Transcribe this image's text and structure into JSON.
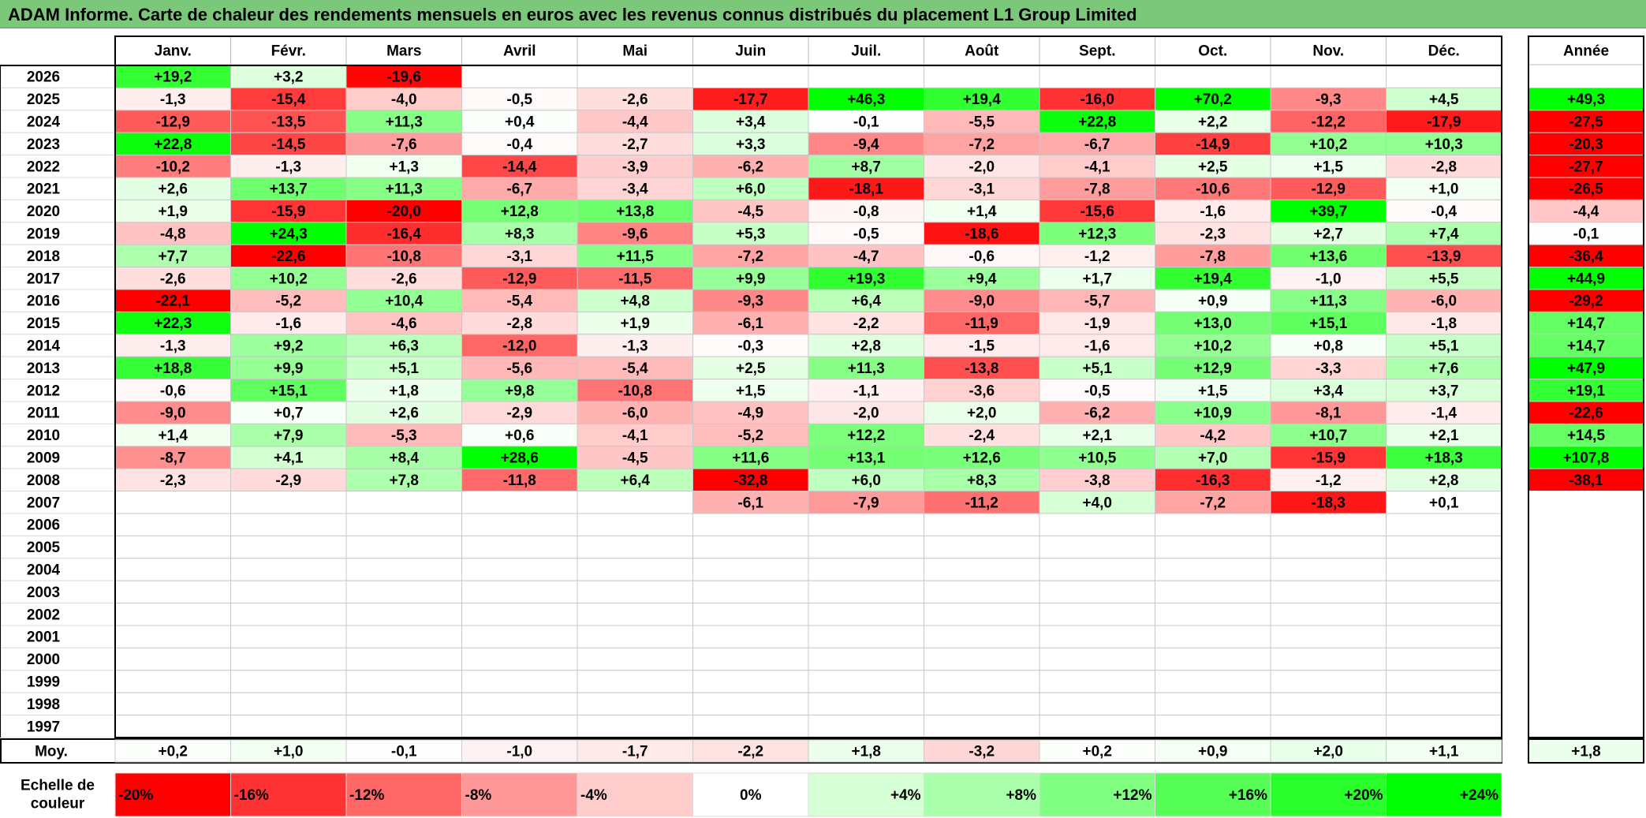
{
  "title": "ADAM Informe. Carte de chaleur des rendements mensuels en euros avec les revenus connus distribués du placement L1 Group Limited",
  "chart_data": {
    "type": "heatmap",
    "title": "ADAM Informe. Carte de chaleur des rendements mensuels en euros avec les revenus connus distribués du placement L1 Group Limited",
    "months": [
      "Janv.",
      "Févr.",
      "Mars",
      "Avril",
      "Mai",
      "Juin",
      "Juil.",
      "Août",
      "Sept.",
      "Oct.",
      "Nov.",
      "Déc."
    ],
    "year_header": "Année",
    "rows": [
      {
        "year": "2026",
        "values": [
          "+19,2",
          "+3,2",
          "-19,6",
          null,
          null,
          null,
          null,
          null,
          null,
          null,
          null,
          null
        ],
        "annual": null
      },
      {
        "year": "2025",
        "values": [
          "-1,3",
          "-15,4",
          "-4,0",
          "-0,5",
          "-2,6",
          "-17,7",
          "+46,3",
          "+19,4",
          "-16,0",
          "+70,2",
          "-9,3",
          "+4,5"
        ],
        "annual": "+49,3"
      },
      {
        "year": "2024",
        "values": [
          "-12,9",
          "-13,5",
          "+11,3",
          "+0,4",
          "-4,4",
          "+3,4",
          "-0,1",
          "-5,5",
          "+22,8",
          "+2,2",
          "-12,2",
          "-17,9"
        ],
        "annual": "-27,5"
      },
      {
        "year": "2023",
        "values": [
          "+22,8",
          "-14,5",
          "-7,6",
          "-0,4",
          "-2,7",
          "+3,3",
          "-9,4",
          "-7,2",
          "-6,7",
          "-14,9",
          "+10,2",
          "+10,3"
        ],
        "annual": "-20,3"
      },
      {
        "year": "2022",
        "values": [
          "-10,2",
          "-1,3",
          "+1,3",
          "-14,4",
          "-3,9",
          "-6,2",
          "+8,7",
          "-2,0",
          "-4,1",
          "+2,5",
          "+1,5",
          "-2,8"
        ],
        "annual": "-27,7"
      },
      {
        "year": "2021",
        "values": [
          "+2,6",
          "+13,7",
          "+11,3",
          "-6,7",
          "-3,4",
          "+6,0",
          "-18,1",
          "-3,1",
          "-7,8",
          "-10,6",
          "-12,9",
          "+1,0"
        ],
        "annual": "-26,5"
      },
      {
        "year": "2020",
        "values": [
          "+1,9",
          "-15,9",
          "-20,0",
          "+12,8",
          "+13,8",
          "-4,5",
          "-0,8",
          "+1,4",
          "-15,6",
          "-1,6",
          "+39,7",
          "-0,4"
        ],
        "annual": "-4,4"
      },
      {
        "year": "2019",
        "values": [
          "-4,8",
          "+24,3",
          "-16,4",
          "+8,3",
          "-9,6",
          "+5,3",
          "-0,5",
          "-18,6",
          "+12,3",
          "-2,3",
          "+2,7",
          "+7,4"
        ],
        "annual": "-0,1"
      },
      {
        "year": "2018",
        "values": [
          "+7,7",
          "-22,6",
          "-10,8",
          "-3,1",
          "+11,5",
          "-7,2",
          "-4,7",
          "-0,6",
          "-1,2",
          "-7,8",
          "+13,6",
          "-13,9"
        ],
        "annual": "-36,4"
      },
      {
        "year": "2017",
        "values": [
          "-2,6",
          "+10,2",
          "-2,6",
          "-12,9",
          "-11,5",
          "+9,9",
          "+19,3",
          "+9,4",
          "+1,7",
          "+19,4",
          "-1,0",
          "+5,5"
        ],
        "annual": "+44,9"
      },
      {
        "year": "2016",
        "values": [
          "-22,1",
          "-5,2",
          "+10,4",
          "-5,4",
          "+4,8",
          "-9,3",
          "+6,4",
          "-9,0",
          "-5,7",
          "+0,9",
          "+11,3",
          "-6,0"
        ],
        "annual": "-29,2"
      },
      {
        "year": "2015",
        "values": [
          "+22,3",
          "-1,6",
          "-4,6",
          "-2,8",
          "+1,9",
          "-6,1",
          "-2,2",
          "-11,9",
          "-1,9",
          "+13,0",
          "+15,1",
          "-1,8"
        ],
        "annual": "+14,7"
      },
      {
        "year": "2014",
        "values": [
          "-1,3",
          "+9,2",
          "+6,3",
          "-12,0",
          "-1,3",
          "-0,3",
          "+2,8",
          "-1,5",
          "-1,6",
          "+10,2",
          "+0,8",
          "+5,1"
        ],
        "annual": "+14,7"
      },
      {
        "year": "2013",
        "values": [
          "+18,8",
          "+9,9",
          "+5,1",
          "-5,6",
          "-5,4",
          "+2,5",
          "+11,3",
          "-13,8",
          "+5,1",
          "+12,9",
          "-3,3",
          "+7,6"
        ],
        "annual": "+47,9"
      },
      {
        "year": "2012",
        "values": [
          "-0,6",
          "+15,1",
          "+1,8",
          "+9,8",
          "-10,8",
          "+1,5",
          "-1,1",
          "-3,6",
          "-0,5",
          "+1,5",
          "+3,4",
          "+3,7"
        ],
        "annual": "+19,1"
      },
      {
        "year": "2011",
        "values": [
          "-9,0",
          "+0,7",
          "+2,6",
          "-2,9",
          "-6,0",
          "-4,9",
          "-2,0",
          "+2,0",
          "-6,2",
          "+10,9",
          "-8,1",
          "-1,4"
        ],
        "annual": "-22,6"
      },
      {
        "year": "2010",
        "values": [
          "+1,4",
          "+7,9",
          "-5,3",
          "+0,6",
          "-4,1",
          "-5,2",
          "+12,2",
          "-2,4",
          "+2,1",
          "-4,2",
          "+10,7",
          "+2,1"
        ],
        "annual": "+14,5"
      },
      {
        "year": "2009",
        "values": [
          "-8,7",
          "+4,1",
          "+8,4",
          "+28,6",
          "-4,5",
          "+11,6",
          "+13,1",
          "+12,6",
          "+10,5",
          "+7,0",
          "-15,9",
          "+18,3"
        ],
        "annual": "+107,8"
      },
      {
        "year": "2008",
        "values": [
          "-2,3",
          "-2,9",
          "+7,8",
          "-11,8",
          "+6,4",
          "-32,8",
          "+6,0",
          "+8,3",
          "-3,8",
          "-16,3",
          "-1,2",
          "+2,8"
        ],
        "annual": "-38,1"
      },
      {
        "year": "2007",
        "values": [
          null,
          null,
          null,
          null,
          null,
          "-6,1",
          "-7,9",
          "-11,2",
          "+4,0",
          "-7,2",
          "-18,3",
          "+0,1"
        ],
        "annual": null
      },
      {
        "year": "2006",
        "values": [
          null,
          null,
          null,
          null,
          null,
          null,
          null,
          null,
          null,
          null,
          null,
          null
        ],
        "annual": null
      },
      {
        "year": "2005",
        "values": [
          null,
          null,
          null,
          null,
          null,
          null,
          null,
          null,
          null,
          null,
          null,
          null
        ],
        "annual": null
      },
      {
        "year": "2004",
        "values": [
          null,
          null,
          null,
          null,
          null,
          null,
          null,
          null,
          null,
          null,
          null,
          null
        ],
        "annual": null
      },
      {
        "year": "2003",
        "values": [
          null,
          null,
          null,
          null,
          null,
          null,
          null,
          null,
          null,
          null,
          null,
          null
        ],
        "annual": null
      },
      {
        "year": "2002",
        "values": [
          null,
          null,
          null,
          null,
          null,
          null,
          null,
          null,
          null,
          null,
          null,
          null
        ],
        "annual": null
      },
      {
        "year": "2001",
        "values": [
          null,
          null,
          null,
          null,
          null,
          null,
          null,
          null,
          null,
          null,
          null,
          null
        ],
        "annual": null
      },
      {
        "year": "2000",
        "values": [
          null,
          null,
          null,
          null,
          null,
          null,
          null,
          null,
          null,
          null,
          null,
          null
        ],
        "annual": null
      },
      {
        "year": "1999",
        "values": [
          null,
          null,
          null,
          null,
          null,
          null,
          null,
          null,
          null,
          null,
          null,
          null
        ],
        "annual": null
      },
      {
        "year": "1998",
        "values": [
          null,
          null,
          null,
          null,
          null,
          null,
          null,
          null,
          null,
          null,
          null,
          null
        ],
        "annual": null
      },
      {
        "year": "1997",
        "values": [
          null,
          null,
          null,
          null,
          null,
          null,
          null,
          null,
          null,
          null,
          null,
          null
        ],
        "annual": null
      }
    ],
    "average": {
      "label": "Moy.",
      "values": [
        "+0,2",
        "+1,0",
        "-0,1",
        "-1,0",
        "-1,7",
        "-2,2",
        "+1,8",
        "-3,2",
        "+0,2",
        "+0,9",
        "+2,0",
        "+1,1"
      ],
      "annual": "+1,8"
    },
    "color_scale": {
      "label": "Echelle de couleur",
      "steps": [
        {
          "label": "-20%",
          "value": -20,
          "color": "#ff0000"
        },
        {
          "label": "-16%",
          "value": -16,
          "color": "#ff3333"
        },
        {
          "label": "-12%",
          "value": -12,
          "color": "#ff6666"
        },
        {
          "label": "-8%",
          "value": -8,
          "color": "#ff9999"
        },
        {
          "label": "-4%",
          "value": -4,
          "color": "#ffcccc"
        },
        {
          "label": "0%",
          "value": 0,
          "color": "#ffffff"
        },
        {
          "label": "+4%",
          "value": 4,
          "color": "#d5ffd5"
        },
        {
          "label": "+8%",
          "value": 8,
          "color": "#aaffaa"
        },
        {
          "label": "+12%",
          "value": 12,
          "color": "#80ff80"
        },
        {
          "label": "+16%",
          "value": 16,
          "color": "#55ff55"
        },
        {
          "label": "+20%",
          "value": 20,
          "color": "#2bff2b"
        },
        {
          "label": "+24%",
          "value": 24,
          "color": "#00ff00"
        }
      ]
    },
    "colors": {
      "negative_max": "#ff0000",
      "positive_max": "#00ff00",
      "title_background": "#7bc87b"
    }
  }
}
